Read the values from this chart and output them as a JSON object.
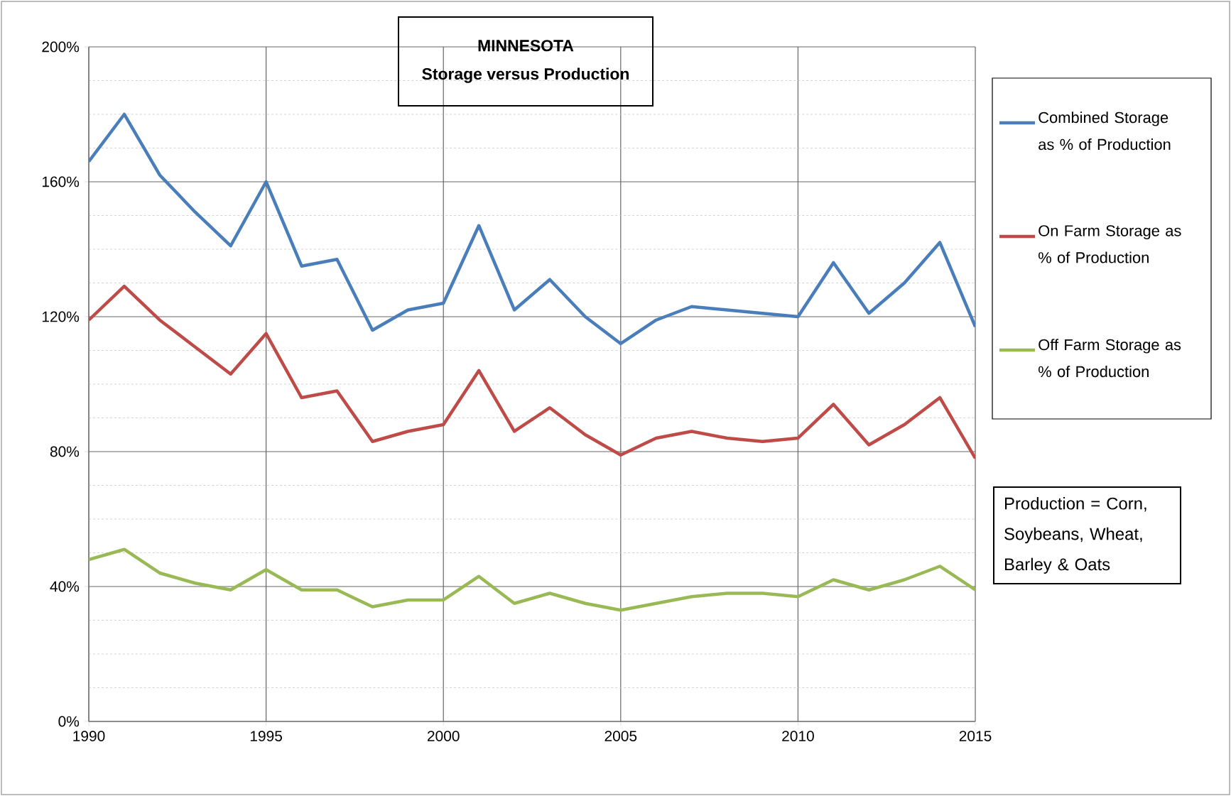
{
  "chart_data": {
    "type": "line",
    "title": "MINNESOTA",
    "subtitle": "Storage versus Production",
    "x": [
      1990,
      1991,
      1992,
      1993,
      1994,
      1995,
      1996,
      1997,
      1998,
      1999,
      2000,
      2001,
      2002,
      2003,
      2004,
      2005,
      2006,
      2007,
      2008,
      2009,
      2010,
      2011,
      2012,
      2013,
      2014,
      2015
    ],
    "series": [
      {
        "name": "Combined Storage as % of Production",
        "color": "#4a7ebb",
        "values": [
          166,
          180,
          162,
          151,
          141,
          160,
          135,
          137,
          116,
          122,
          124,
          147,
          122,
          131,
          120,
          112,
          119,
          123,
          122,
          121,
          120,
          136,
          121,
          130,
          142,
          117
        ]
      },
      {
        "name": "On Farm Storage as % of Production",
        "color": "#be4b48",
        "values": [
          119,
          129,
          119,
          111,
          103,
          115,
          96,
          98,
          83,
          86,
          88,
          104,
          86,
          93,
          85,
          79,
          84,
          86,
          84,
          83,
          84,
          94,
          82,
          88,
          96,
          78
        ]
      },
      {
        "name": "Off Farm Storage as % of Production",
        "color": "#98b954",
        "values": [
          48,
          51,
          44,
          41,
          39,
          45,
          39,
          39,
          34,
          36,
          36,
          43,
          35,
          38,
          35,
          33,
          35,
          37,
          38,
          38,
          37,
          42,
          39,
          42,
          46,
          39
        ]
      }
    ],
    "xlim": [
      1990,
      2015
    ],
    "xticks": [
      1990,
      1995,
      2000,
      2005,
      2010,
      2015
    ],
    "ylim": [
      0,
      200
    ],
    "yticks": [
      {
        "value": 0,
        "label": "0%"
      },
      {
        "value": 40,
        "label": "40%"
      },
      {
        "value": 80,
        "label": "80%"
      },
      {
        "value": 120,
        "label": "120%"
      },
      {
        "value": 160,
        "label": "160%"
      },
      {
        "value": 200,
        "label": "200%"
      }
    ],
    "grid": true,
    "legend": "right",
    "marker": "none",
    "line_style": "solid",
    "annotations": [
      "Production = Corn, Soybeans, Wheat, Barley & Oats"
    ]
  }
}
